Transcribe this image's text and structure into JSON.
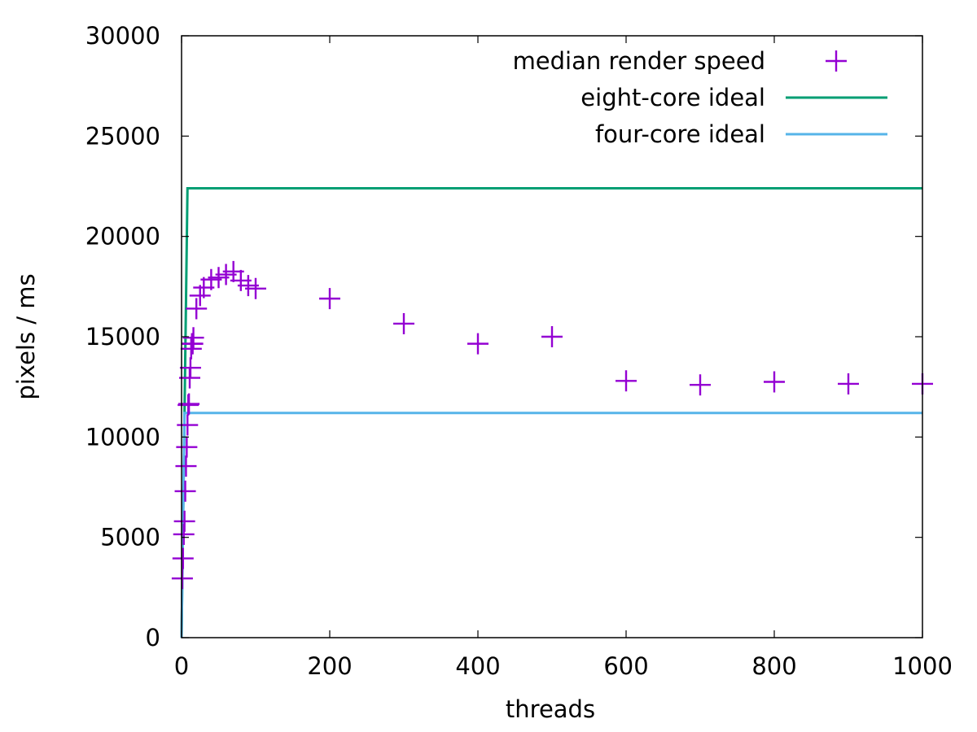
{
  "chart_data": {
    "type": "scatter",
    "title": "",
    "xlabel": "threads",
    "ylabel": "pixels / ms",
    "xlim": [
      0,
      1000
    ],
    "ylim": [
      0,
      30000
    ],
    "xticks": [
      0,
      200,
      400,
      600,
      800,
      1000
    ],
    "yticks": [
      0,
      5000,
      10000,
      15000,
      20000,
      25000,
      30000
    ],
    "legend_position": "top-right",
    "grid": false,
    "series": [
      {
        "name": "median render speed",
        "kind": "points",
        "marker": "plus",
        "color": "#9400d3",
        "points": [
          [
            1,
            2950
          ],
          [
            2,
            3950
          ],
          [
            3,
            5150
          ],
          [
            4,
            5800
          ],
          [
            5,
            7300
          ],
          [
            6,
            8550
          ],
          [
            7,
            9500
          ],
          [
            8,
            10600
          ],
          [
            9,
            11600
          ],
          [
            10,
            11650
          ],
          [
            11,
            12950
          ],
          [
            12,
            13450
          ],
          [
            13,
            14400
          ],
          [
            14,
            14650
          ],
          [
            15,
            14650
          ],
          [
            16,
            14950
          ],
          [
            20,
            16400
          ],
          [
            25,
            17050
          ],
          [
            30,
            17450
          ],
          [
            40,
            17850
          ],
          [
            50,
            17950
          ],
          [
            60,
            18100
          ],
          [
            70,
            18250
          ],
          [
            80,
            17800
          ],
          [
            90,
            17550
          ],
          [
            100,
            17400
          ],
          [
            200,
            16900
          ],
          [
            300,
            15650
          ],
          [
            400,
            14650
          ],
          [
            500,
            15000
          ],
          [
            600,
            12800
          ],
          [
            700,
            12600
          ],
          [
            800,
            12750
          ],
          [
            900,
            12650
          ],
          [
            1000,
            12650
          ]
        ]
      },
      {
        "name": "eight-core ideal",
        "kind": "line",
        "color": "#009e73",
        "points": [
          [
            0,
            0
          ],
          [
            1,
            2800
          ],
          [
            2,
            5600
          ],
          [
            3,
            8400
          ],
          [
            4,
            11200
          ],
          [
            5,
            14000
          ],
          [
            6,
            16800
          ],
          [
            7,
            19600
          ],
          [
            8,
            22400
          ],
          [
            1000,
            22400
          ]
        ]
      },
      {
        "name": "four-core ideal",
        "kind": "line",
        "color": "#56b4e9",
        "points": [
          [
            0,
            0
          ],
          [
            1,
            2800
          ],
          [
            2,
            5600
          ],
          [
            3,
            8400
          ],
          [
            4,
            11200
          ],
          [
            1000,
            11200
          ]
        ]
      }
    ]
  }
}
